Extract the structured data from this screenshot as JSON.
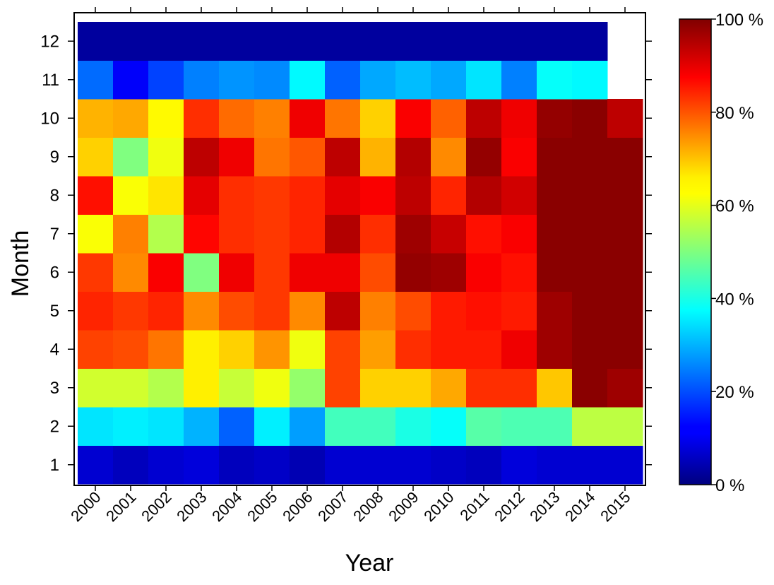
{
  "chart_data": {
    "type": "heatmap",
    "title": "",
    "xlabel": "Year",
    "ylabel": "Month",
    "x_categories": [
      "2000",
      "2001",
      "2002",
      "2003",
      "2004",
      "2005",
      "2006",
      "2007",
      "2008",
      "2009",
      "2010",
      "2011",
      "2012",
      "2013",
      "2014",
      "2015"
    ],
    "y_categories": [
      "1",
      "2",
      "3",
      "4",
      "5",
      "6",
      "7",
      "8",
      "9",
      "10",
      "11",
      "12"
    ],
    "colorbar": {
      "ticks": [
        {
          "value": 0,
          "label": "0 %"
        },
        {
          "value": 20,
          "label": "20 %"
        },
        {
          "value": 40,
          "label": "40 %"
        },
        {
          "value": 60,
          "label": "60 %"
        },
        {
          "value": 80,
          "label": "80 %"
        },
        {
          "value": 100,
          "label": "100 %"
        }
      ],
      "range": [
        0,
        100
      ],
      "colormap": "jet"
    },
    "values_percent_by_year": {
      "2000": [
        8,
        35,
        58,
        81,
        84,
        82,
        62,
        86,
        67,
        70,
        23,
        3
      ],
      "2001": [
        6,
        36,
        58,
        80,
        82,
        74,
        75,
        62,
        50,
        71,
        12,
        3
      ],
      "2002": [
        8,
        35,
        55,
        76,
        84,
        88,
        55,
        65,
        61,
        63,
        19,
        3
      ],
      "2003": [
        9,
        30,
        64,
        64,
        74,
        50,
        87,
        90,
        94,
        83,
        25,
        3
      ],
      "2004": [
        6,
        22,
        57,
        67,
        80,
        89,
        83,
        83,
        89,
        77,
        27,
        3
      ],
      "2005": [
        7,
        36,
        61,
        73,
        82,
        82,
        82,
        82,
        76,
        75,
        26,
        3
      ],
      "2006": [
        5,
        28,
        52,
        61,
        74,
        89,
        84,
        84,
        79,
        89,
        37,
        3
      ],
      "2007": [
        8,
        44,
        81,
        81,
        94,
        89,
        95,
        90,
        94,
        76,
        22,
        3
      ],
      "2008": [
        8,
        44,
        67,
        72,
        75,
        80,
        83,
        88,
        70,
        67,
        29,
        3
      ],
      "2009": [
        8,
        40,
        67,
        83,
        80,
        98,
        97,
        94,
        95,
        88,
        31,
        3
      ],
      "2010": [
        7,
        38,
        71,
        85,
        85,
        97,
        93,
        84,
        74,
        78,
        29,
        3
      ],
      "2011": [
        6,
        46,
        83,
        85,
        86,
        88,
        86,
        95,
        98,
        94,
        35,
        3
      ],
      "2012": [
        9,
        45,
        83,
        89,
        85,
        86,
        88,
        92,
        88,
        89,
        25,
        3
      ],
      "2013": [
        8,
        45,
        68,
        97,
        97,
        99,
        99,
        99,
        99,
        98,
        38,
        3
      ],
      "2014": [
        8,
        56,
        99,
        99,
        99,
        99,
        99,
        99,
        99,
        99,
        37,
        3
      ],
      "2015": [
        8,
        56,
        97,
        99,
        99,
        99,
        99,
        99,
        99,
        94,
        null,
        null
      ]
    }
  }
}
